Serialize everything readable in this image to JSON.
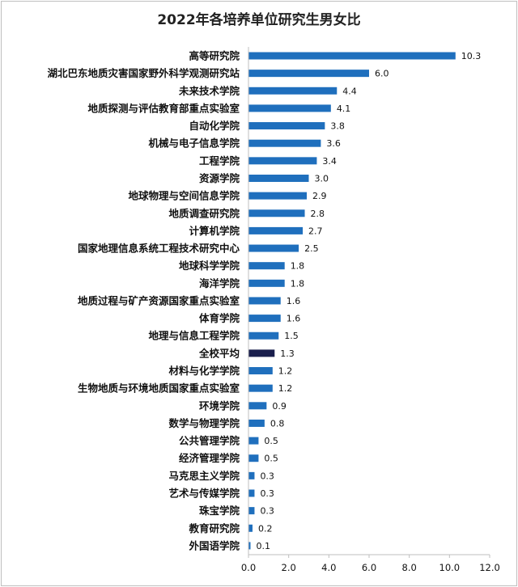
{
  "chart_data": {
    "type": "bar",
    "orientation": "horizontal",
    "title": "2022年各培养单位研究生男女比",
    "categories": [
      "高等研究院",
      "湖北巴东地质灾害国家野外科学观测研究站",
      "未来技术学院",
      "地质探测与评估教育部重点实验室",
      "自动化学院",
      "机械与电子信息学院",
      "工程学院",
      "资源学院",
      "地球物理与空间信息学院",
      "地质调查研究院",
      "计算机学院",
      "国家地理信息系统工程技术研究中心",
      "地球科学学院",
      "海洋学院",
      "地质过程与矿产资源国家重点实验室",
      "体育学院",
      "地理与信息工程学院",
      "全校平均",
      "材料与化学学院",
      "生物地质与环境地质国家重点实验室",
      "环境学院",
      "数学与物理学院",
      "公共管理学院",
      "经济管理学院",
      "马克思主义学院",
      "艺术与传媒学院",
      "珠宝学院",
      "教育研究院",
      "外国语学院"
    ],
    "values": [
      10.3,
      6.0,
      4.4,
      4.1,
      3.8,
      3.6,
      3.4,
      3.0,
      2.9,
      2.8,
      2.7,
      2.5,
      1.8,
      1.8,
      1.6,
      1.6,
      1.5,
      1.3,
      1.2,
      1.2,
      0.9,
      0.8,
      0.5,
      0.5,
      0.3,
      0.3,
      0.3,
      0.2,
      0.1
    ],
    "value_labels": [
      "10.3",
      "6.0",
      "4.4",
      "4.1",
      "3.8",
      "3.6",
      "3.4",
      "3.0",
      "2.9",
      "2.8",
      "2.7",
      "2.5",
      "1.8",
      "1.8",
      "1.6",
      "1.6",
      "1.5",
      "1.3",
      "1.2",
      "1.2",
      "0.9",
      "0.8",
      "0.5",
      "0.5",
      "0.3",
      "0.3",
      "0.3",
      "0.2",
      "0.1"
    ],
    "highlight_category": "全校平均",
    "xlim": [
      0,
      12
    ],
    "xticks": [
      0,
      2,
      4,
      6,
      8,
      10,
      12
    ],
    "xtick_labels": [
      "0.0",
      "2.0",
      "4.0",
      "6.0",
      "8.0",
      "10.0",
      "12.0"
    ],
    "grid": false,
    "legend": "none",
    "colors": {
      "bar": "#1f6fbd",
      "highlight": "#1a1f4d",
      "axis": "#bfbfbf"
    }
  }
}
